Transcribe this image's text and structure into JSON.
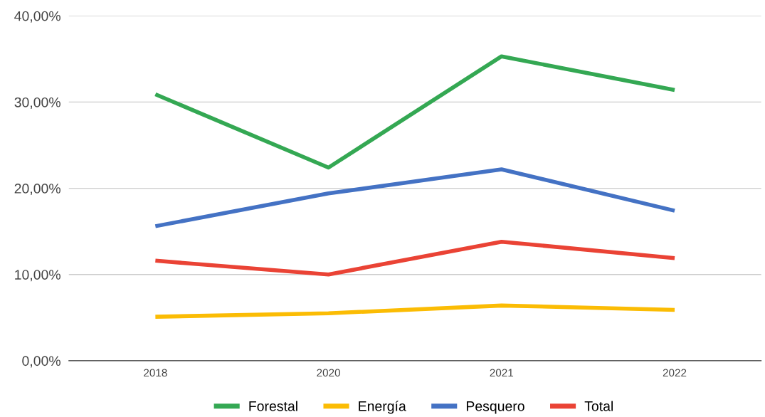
{
  "chart_data": {
    "type": "line",
    "categories": [
      "2018",
      "2020",
      "2021",
      "2022"
    ],
    "series": [
      {
        "name": "Forestal",
        "color": "#34a853",
        "values": [
          30.9,
          22.4,
          35.3,
          31.4
        ]
      },
      {
        "name": "Energía",
        "color": "#fbbc04",
        "values": [
          5.1,
          5.5,
          6.4,
          5.9
        ]
      },
      {
        "name": "Pesquero",
        "color": "#4472c4",
        "values": [
          15.6,
          19.4,
          22.2,
          17.4
        ]
      },
      {
        "name": "Total",
        "color": "#ea4335",
        "values": [
          11.6,
          10.0,
          13.8,
          11.9
        ]
      }
    ],
    "ylim": [
      0,
      40
    ],
    "yticks": [
      {
        "value": 0,
        "label": "0,00%"
      },
      {
        "value": 10,
        "label": "10,00%"
      },
      {
        "value": 20,
        "label": "20,00%"
      },
      {
        "value": 30,
        "label": "30,00%"
      },
      {
        "value": 40,
        "label": "40,00%"
      }
    ],
    "grid": "y",
    "legend": "bottom",
    "marker": "none",
    "line_style": "solid"
  }
}
